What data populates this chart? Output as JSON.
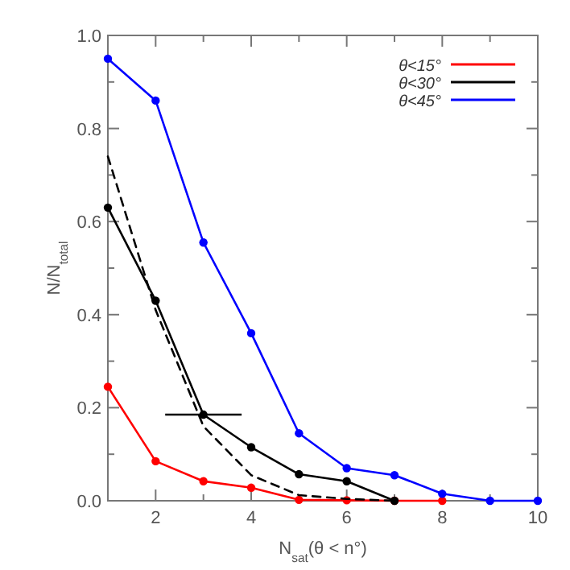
{
  "chart_data": {
    "type": "line",
    "xlabel": "N$_{sat}$(θ < n°)",
    "ylabel": "N/N$_{total}$",
    "x": [
      1,
      2,
      3,
      4,
      5,
      6,
      7,
      8,
      9,
      10
    ],
    "xlim": [
      1,
      10
    ],
    "ylim": [
      0,
      1
    ],
    "xticks": [
      2,
      {
        "value": 3,
        "label": null
      },
      4,
      {
        "value": 5,
        "label": null
      },
      6,
      {
        "value": 7,
        "label": null
      },
      8,
      {
        "value": 9,
        "label": null
      },
      10
    ],
    "yticks": [
      {
        "value": 0,
        "label": "0.0"
      },
      {
        "value": 0.1,
        "label": null
      },
      {
        "value": 0.2,
        "label": "0.2"
      },
      {
        "value": 0.3,
        "label": null
      },
      {
        "value": 0.4,
        "label": "0.4"
      },
      {
        "value": 0.5,
        "label": null
      },
      {
        "value": 0.6,
        "label": "0.6"
      },
      {
        "value": 0.7,
        "label": null
      },
      {
        "value": 0.8,
        "label": "0.8"
      },
      {
        "value": 0.9,
        "label": null
      },
      {
        "value": 1,
        "label": "1.0"
      }
    ],
    "grid": false,
    "legend": "top right",
    "marker": "circle",
    "line_style": "solid",
    "series": [
      {
        "name": "θ<15°",
        "color": "#ff0000",
        "values": [
          0.245,
          0.085,
          0.042,
          0.028,
          0.002,
          0.001,
          0,
          0,
          null,
          null
        ]
      },
      {
        "name": "θ<30°",
        "color": "#000000",
        "values": [
          0.63,
          0.43,
          0.185,
          0.115,
          0.057,
          0.042,
          0,
          null,
          null,
          null
        ],
        "xerrors": [
          null,
          null,
          [
            2.2,
            3.8
          ],
          null,
          null,
          null,
          null,
          null,
          null,
          null
        ]
      },
      {
        "name": "θ<45°",
        "color": "#0000ff",
        "values": [
          0.95,
          0.86,
          0.555,
          0.36,
          0.145,
          0.07,
          0.055,
          0.015,
          0,
          0
        ]
      },
      {
        "color": "#000000",
        "values": [
          0.74,
          0.41,
          0.16,
          0.055,
          0.012,
          0.004,
          0,
          null,
          null,
          null
        ],
        "marker": "none",
        "line_style": "dashed"
      }
    ]
  }
}
